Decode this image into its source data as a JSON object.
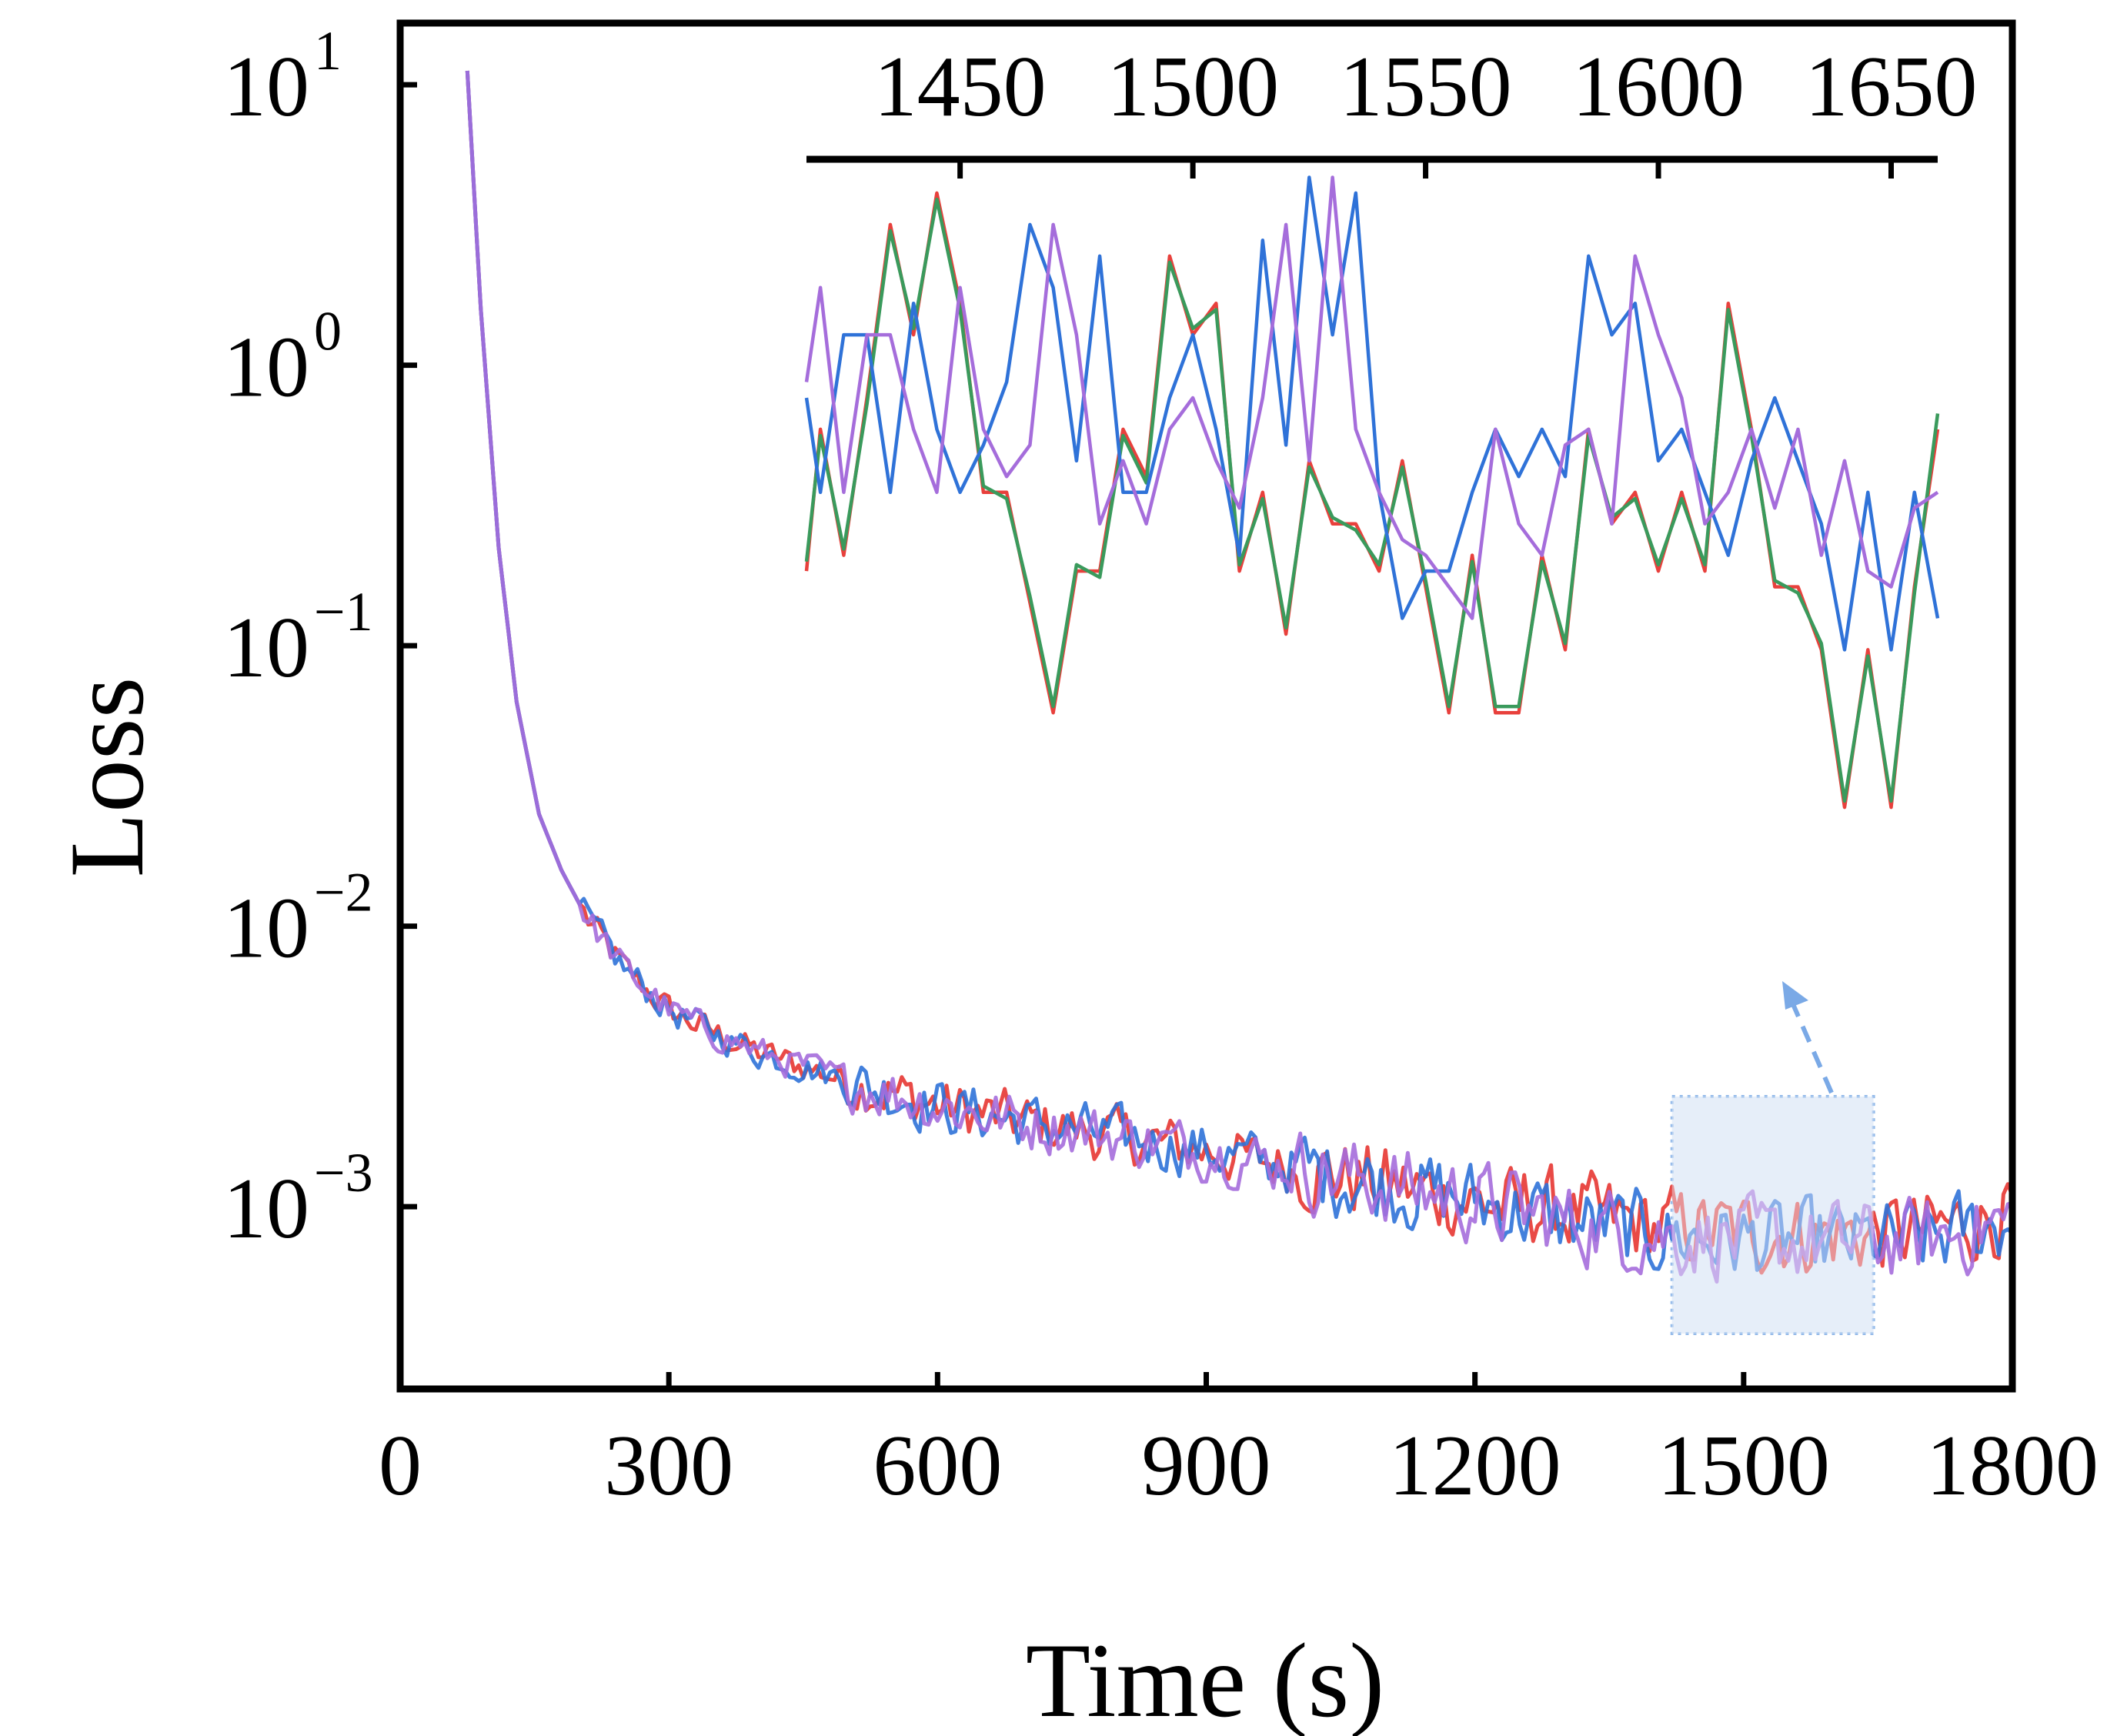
{
  "chart_data": {
    "type": "line",
    "title": "",
    "xlabel": "Time (s)",
    "ylabel": "Loss",
    "xlim": [
      0,
      1800
    ],
    "ylim_log10": [
      -3.65,
      1.22
    ],
    "xticks": [
      "0",
      "300",
      "600",
      "900",
      "1200",
      "1500",
      "1800"
    ],
    "yticks": [
      {
        "base": "10",
        "exp": "1",
        "log": 1
      },
      {
        "base": "10",
        "exp": "0",
        "log": 0
      },
      {
        "base": "10",
        "exp": "−1",
        "log": -1
      },
      {
        "base": "10",
        "exp": "−2",
        "log": -2
      },
      {
        "base": "10",
        "exp": "−3",
        "log": -3
      }
    ],
    "series_colors": {
      "red": "#e8403c",
      "green": "#3a9a5c",
      "blue": "#2f72d8",
      "purple": "#a56ddb"
    },
    "main_series": [
      {
        "name": "red",
        "color": "#e8403c"
      },
      {
        "name": "blue",
        "color": "#2f72d8"
      },
      {
        "name": "purple",
        "color": "#a56ddb"
      }
    ],
    "main_trend_anchors": {
      "x": [
        75,
        90,
        110,
        130,
        155,
        180,
        210,
        250,
        300,
        350,
        400,
        450,
        500,
        600,
        700,
        800,
        900,
        1000,
        1100,
        1200,
        1300,
        1400,
        1500,
        1600,
        1700,
        1800
      ],
      "log10_loss": [
        1.05,
        0.2,
        -0.65,
        -1.2,
        -1.6,
        -1.8,
        -1.98,
        -2.15,
        -2.3,
        -2.38,
        -2.45,
        -2.5,
        -2.55,
        -2.64,
        -2.7,
        -2.75,
        -2.8,
        -2.86,
        -2.92,
        -2.98,
        -3.05,
        -3.1,
        -3.12,
        -3.13,
        -3.12,
        -3.05
      ]
    },
    "zoom_box": {
      "x_range": [
        1420,
        1645
      ],
      "fill": "#dde9f7",
      "border": "#6fa3e3"
    },
    "inset": {
      "xticks": [
        "1450",
        "1500",
        "1550",
        "1600",
        "1650"
      ],
      "xlim": [
        1417,
        1660
      ],
      "x": [
        1415,
        1420,
        1425,
        1430,
        1435,
        1440,
        1445,
        1450,
        1455,
        1460,
        1465,
        1470,
        1475,
        1480,
        1485,
        1490,
        1495,
        1500,
        1505,
        1510,
        1515,
        1520,
        1525,
        1530,
        1535,
        1540,
        1545,
        1550,
        1555,
        1560,
        1565,
        1570,
        1575,
        1580,
        1585,
        1590,
        1595,
        1600,
        1605,
        1610,
        1615,
        1620,
        1625,
        1630,
        1635,
        1640,
        1645,
        1650,
        1655,
        1660
      ],
      "series": [
        {
          "name": "red",
          "color": "#e8403c",
          "y_log": [
            -0.75,
            -0.3,
            -0.7,
            -0.2,
            0.35,
            0.0,
            0.45,
            0.1,
            -0.5,
            -0.5,
            -0.85,
            -1.2,
            -0.75,
            -0.75,
            -0.3,
            -0.45,
            0.25,
            0.0,
            0.1,
            -0.75,
            -0.5,
            -0.95,
            -0.4,
            -0.6,
            -0.6,
            -0.75,
            -0.4,
            -0.8,
            -1.2,
            -0.7,
            -1.2,
            -1.2,
            -0.7,
            -1.0,
            -0.3,
            -0.6,
            -0.5,
            -0.75,
            -0.5,
            -0.75,
            0.1,
            -0.3,
            -0.8,
            -0.8,
            -1.0,
            -1.5,
            -1.0,
            -1.5,
            -0.8,
            -0.3
          ]
        },
        {
          "name": "green",
          "color": "#3a9a5c",
          "y_log": [
            -0.72,
            -0.32,
            -0.68,
            -0.22,
            0.33,
            0.02,
            0.43,
            0.08,
            -0.48,
            -0.52,
            -0.83,
            -1.18,
            -0.73,
            -0.77,
            -0.32,
            -0.47,
            0.23,
            0.02,
            0.08,
            -0.73,
            -0.52,
            -0.93,
            -0.42,
            -0.58,
            -0.62,
            -0.73,
            -0.42,
            -0.78,
            -1.18,
            -0.72,
            -1.18,
            -1.18,
            -0.72,
            -0.98,
            -0.32,
            -0.58,
            -0.52,
            -0.73,
            -0.52,
            -0.73,
            0.08,
            -0.32,
            -0.78,
            -0.82,
            -0.98,
            -1.48,
            -1.02,
            -1.48,
            -0.82,
            -0.25
          ]
        },
        {
          "name": "blue",
          "color": "#2f72d8",
          "y_log": [
            -0.2,
            -0.5,
            0.0,
            0.0,
            -0.5,
            0.1,
            -0.3,
            -0.5,
            -0.35,
            -0.15,
            0.35,
            0.15,
            -0.4,
            0.25,
            -0.5,
            -0.5,
            -0.2,
            0.0,
            -0.3,
            -0.7,
            0.3,
            -0.35,
            0.5,
            0.0,
            0.45,
            -0.5,
            -0.9,
            -0.75,
            -0.75,
            -0.5,
            -0.3,
            -0.45,
            -0.3,
            -0.45,
            0.25,
            0.0,
            0.1,
            -0.4,
            -0.3,
            -0.5,
            -0.7,
            -0.4,
            -0.2,
            -0.4,
            -0.6,
            -1.0,
            -0.5,
            -1.0,
            -0.5,
            -0.9
          ]
        },
        {
          "name": "purple",
          "color": "#a56ddb",
          "y_log": [
            -0.15,
            0.15,
            -0.5,
            0.0,
            0.0,
            -0.3,
            -0.5,
            0.15,
            -0.3,
            -0.45,
            -0.35,
            0.35,
            0.0,
            -0.6,
            -0.4,
            -0.6,
            -0.3,
            -0.2,
            -0.4,
            -0.55,
            -0.2,
            0.35,
            -0.4,
            0.5,
            -0.3,
            -0.5,
            -0.65,
            -0.7,
            -0.8,
            -0.9,
            -0.3,
            -0.6,
            -0.7,
            -0.35,
            -0.3,
            -0.6,
            0.25,
            0.0,
            -0.2,
            -0.6,
            -0.5,
            -0.3,
            -0.55,
            -0.3,
            -0.7,
            -0.4,
            -0.75,
            -0.8,
            -0.55,
            -0.5
          ]
        }
      ]
    }
  }
}
